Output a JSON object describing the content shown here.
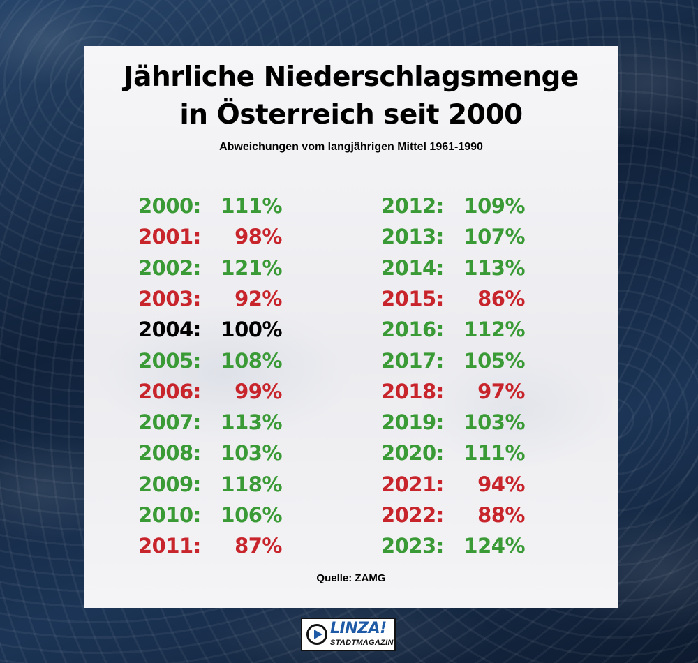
{
  "title_line1": "Jährliche Niederschlagsmenge",
  "title_line2": "in Österreich seit 2000",
  "subtitle": "Abweichungen vom langjährigen Mittel 1961-1990",
  "source": "Quelle: ZAMG",
  "logo": {
    "brand": "LINZA!",
    "sub": "STADTMAGAZIN"
  },
  "colors": {
    "above": "#3a9a35",
    "below": "#c8242b",
    "average": "#000000"
  },
  "chart_data": {
    "type": "table",
    "title": "Jährliche Niederschlagsmenge in Österreich seit 2000",
    "subtitle": "Abweichungen vom langjährigen Mittel 1961-1990",
    "columns": [
      [
        {
          "year": "2000:",
          "value": "111%",
          "percent": 111
        },
        {
          "year": "2001:",
          "value": "98%",
          "percent": 98
        },
        {
          "year": "2002:",
          "value": "121%",
          "percent": 121
        },
        {
          "year": "2003:",
          "value": "92%",
          "percent": 92
        },
        {
          "year": "2004:",
          "value": "100%",
          "percent": 100
        },
        {
          "year": "2005:",
          "value": "108%",
          "percent": 108
        },
        {
          "year": "2006:",
          "value": "99%",
          "percent": 99
        },
        {
          "year": "2007:",
          "value": "113%",
          "percent": 113
        },
        {
          "year": "2008:",
          "value": "103%",
          "percent": 103
        },
        {
          "year": "2009:",
          "value": "118%",
          "percent": 118
        },
        {
          "year": "2010:",
          "value": "106%",
          "percent": 106
        },
        {
          "year": "2011:",
          "value": "87%",
          "percent": 87
        }
      ],
      [
        {
          "year": "2012:",
          "value": "109%",
          "percent": 109
        },
        {
          "year": "2013:",
          "value": "107%",
          "percent": 107
        },
        {
          "year": "2014:",
          "value": "113%",
          "percent": 113
        },
        {
          "year": "2015:",
          "value": "86%",
          "percent": 86
        },
        {
          "year": "2016:",
          "value": "112%",
          "percent": 112
        },
        {
          "year": "2017:",
          "value": "105%",
          "percent": 105
        },
        {
          "year": "2018:",
          "value": "97%",
          "percent": 97
        },
        {
          "year": "2019:",
          "value": "103%",
          "percent": 103
        },
        {
          "year": "2020:",
          "value": "111%",
          "percent": 111
        },
        {
          "year": "2021:",
          "value": "94%",
          "percent": 94
        },
        {
          "year": "2022:",
          "value": "88%",
          "percent": 88
        },
        {
          "year": "2023:",
          "value": "124%",
          "percent": 124
        }
      ]
    ]
  }
}
